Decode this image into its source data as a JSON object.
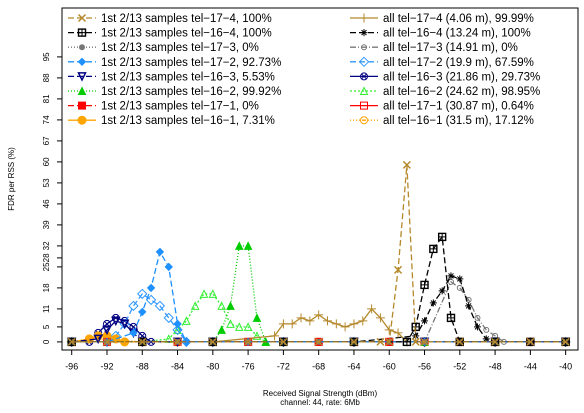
{
  "chart_data": {
    "type": "line",
    "xlabel": "Received Signal Strength (dBm)",
    "subtitle": "channel: 44, rate: 6Mb",
    "ylabel": "FDR per RSS (%)",
    "xlim": [
      -97.1,
      -38.6
    ],
    "ylim": [
      -2.7,
      111.3
    ],
    "xticks": [
      -96,
      -92,
      -88,
      -84,
      -80,
      -76,
      -72,
      -68,
      -64,
      -60,
      -56,
      -52,
      -48,
      -44,
      -40
    ],
    "yticks": [
      0,
      5,
      11,
      18,
      25,
      28,
      32,
      39,
      46,
      53,
      60,
      67,
      74,
      81,
      88,
      95
    ],
    "grid": false,
    "series": [
      {
        "name": "1st 2/13 samples tel−17−4, 100%",
        "color": "#b5892b",
        "marker": "x",
        "dash": "6,3",
        "x": [
          -96,
          -92,
          -88,
          -84,
          -80,
          -76,
          -72,
          -68,
          -64,
          -61,
          -60,
          -59,
          -58,
          -57,
          -56,
          -52,
          -48,
          -44,
          -40
        ],
        "values": [
          0,
          0,
          0,
          0,
          0,
          0,
          0,
          0,
          0,
          0,
          0,
          24,
          59,
          0,
          0,
          0,
          0,
          0,
          0
        ]
      },
      {
        "name": "1st 2/13 samples tel−16−4, 100%",
        "color": "#000000",
        "marker": "square-plus",
        "dash": "6,3",
        "x": [
          -96,
          -88,
          -80,
          -72,
          -64,
          -58,
          -57,
          -56,
          -55,
          -54,
          -53,
          -52,
          -48,
          -44,
          -40
        ],
        "values": [
          0,
          0,
          0,
          0,
          0,
          0,
          5,
          19,
          31,
          35,
          8,
          0,
          0,
          0,
          0
        ]
      },
      {
        "name": "1st 2/13 samples tel−17−3, 0%",
        "color": "#777777",
        "marker": "dot",
        "dash": "1,2",
        "x": [
          -96,
          -92,
          -88,
          -84,
          -80,
          -76,
          -72,
          -68,
          -64,
          -60,
          -56,
          -52,
          -48,
          -44,
          -40
        ],
        "values": [
          0,
          0,
          0,
          0,
          0,
          0,
          0,
          0,
          0,
          0,
          0,
          0,
          0,
          0,
          0
        ]
      },
      {
        "name": "1st 2/13 samples tel−17−2, 92.73%",
        "color": "#1e90ff",
        "marker": "diamond-filled",
        "dash": "6,3",
        "x": [
          -96,
          -92,
          -89,
          -88,
          -87,
          -86,
          -85,
          -84,
          -83,
          -80,
          -76,
          -72,
          -64,
          -56,
          -48,
          -40
        ],
        "values": [
          0,
          0,
          3,
          10,
          18,
          30,
          25,
          6,
          0,
          0,
          0,
          0,
          0,
          0,
          0,
          0
        ]
      },
      {
        "name": "1st 2/13 samples tel−16−3, 5.53%",
        "color": "#000080",
        "marker": "triangle-down",
        "dash": "6,3",
        "x": [
          -96,
          -93,
          -92,
          -91,
          -90,
          -89,
          -88,
          -84,
          -80,
          -72,
          -64,
          -56,
          -48,
          -40
        ],
        "values": [
          0,
          1,
          4,
          7,
          6,
          3,
          0,
          0,
          0,
          0,
          0,
          0,
          0,
          0
        ]
      },
      {
        "name": "1st 2/13 samples tel−16−2, 99.92%",
        "color": "#00cc00",
        "marker": "triangle-filled",
        "dash": "1,2",
        "x": [
          -96,
          -88,
          -80,
          -79,
          -78,
          -77,
          -76,
          -75,
          -74,
          -72,
          -64,
          -56,
          -48,
          -40
        ],
        "values": [
          0,
          0,
          0,
          4,
          12,
          32,
          32,
          8,
          0,
          0,
          0,
          0,
          0,
          0
        ]
      },
      {
        "name": "1st 2/13 samples tel−17−1, 0%",
        "color": "#ff0000",
        "marker": "square-filled",
        "dash": "6,3",
        "x": [
          -96,
          -92,
          -88,
          -84,
          -80,
          -76,
          -72,
          -68,
          -64,
          -60,
          -56,
          -52,
          -48,
          -44,
          -40
        ],
        "values": [
          0,
          0,
          0,
          0,
          0,
          0,
          0,
          0,
          0,
          0,
          0,
          0,
          0,
          0,
          0
        ]
      },
      {
        "name": "1st 2/13 samples tel−16−1, 7.31%",
        "color": "#ffa500",
        "marker": "circle-filled",
        "dash": "",
        "x": [
          -96,
          -94,
          -93,
          -92,
          -91,
          -90,
          -88,
          -84,
          -80,
          -72,
          -64,
          -56,
          -48,
          -40
        ],
        "values": [
          0,
          1,
          2,
          2,
          1,
          0,
          0,
          0,
          0,
          0,
          0,
          0,
          0,
          0
        ]
      },
      {
        "name": "all tel−17−4 (4.06 m), 99.99%",
        "color": "#b5892b",
        "marker": "plus",
        "dash": "",
        "x": [
          -96,
          -88,
          -80,
          -73,
          -72,
          -71,
          -70,
          -69,
          -68,
          -67,
          -66,
          -65,
          -64,
          -63,
          -62,
          -61,
          -60,
          -59,
          -58,
          -56,
          -52,
          -48,
          -44,
          -40
        ],
        "values": [
          0,
          0,
          0,
          2,
          6,
          6,
          8,
          7,
          9,
          7,
          6,
          5,
          6,
          7,
          11,
          8,
          4,
          3,
          0,
          0,
          0,
          0,
          0,
          0
        ]
      },
      {
        "name": "all tel−16−4 (13.24 m), 100%",
        "color": "#000000",
        "marker": "asterisk",
        "dash": "6,3",
        "x": [
          -96,
          -88,
          -80,
          -72,
          -64,
          -57,
          -56,
          -55,
          -54,
          -53,
          -52,
          -51,
          -50,
          -49,
          -48,
          -44,
          -40
        ],
        "values": [
          0,
          0,
          0,
          0,
          0,
          2,
          7,
          13,
          17,
          22,
          21,
          12,
          5,
          1,
          0,
          0,
          0
        ]
      },
      {
        "name": "all tel−17−3 (14.91 m), 0%",
        "color": "#777777",
        "marker": "circle",
        "dash": "6,2,1,2",
        "x": [
          -96,
          -88,
          -80,
          -72,
          -64,
          -56,
          -53,
          -52,
          -51,
          -50,
          -49,
          -48,
          -47,
          -44,
          -40
        ],
        "values": [
          0,
          0,
          0,
          0,
          0,
          0,
          20,
          18,
          14,
          8,
          4,
          2,
          0,
          0,
          0
        ]
      },
      {
        "name": "all tel−17−2 (19.9 m), 67.59%",
        "color": "#3399ff",
        "marker": "diamond",
        "dash": "6,3",
        "x": [
          -96,
          -92,
          -91,
          -90,
          -89,
          -88,
          -87,
          -86,
          -85,
          -84,
          -83,
          -80,
          -72,
          -64,
          -56,
          -48,
          -40
        ],
        "values": [
          0,
          0,
          2,
          6,
          12,
          16,
          14,
          12,
          8,
          4,
          0,
          0,
          0,
          0,
          0,
          0,
          0
        ]
      },
      {
        "name": "all tel−16−3 (21.86 m), 29.73%",
        "color": "#000080",
        "marker": "circle-x",
        "dash": "",
        "x": [
          -96,
          -94,
          -93,
          -92,
          -91,
          -90,
          -89,
          -88,
          -87,
          -84,
          -80,
          -72,
          -64,
          -56,
          -48,
          -40
        ],
        "values": [
          0,
          0,
          3,
          6,
          8,
          7,
          5,
          2,
          0,
          0,
          0,
          0,
          0,
          0,
          0,
          0
        ]
      },
      {
        "name": "all tel−16−2 (24.62 m), 98.95%",
        "color": "#33ee33",
        "marker": "triangle",
        "dash": "2,2",
        "x": [
          -96,
          -88,
          -85,
          -84,
          -83,
          -82,
          -81,
          -80,
          -79,
          -78,
          -77,
          -76,
          -75,
          -74,
          -72,
          -64,
          -56,
          -48,
          -40
        ],
        "values": [
          0,
          0,
          1,
          4,
          7,
          12,
          16,
          16,
          12,
          6,
          5,
          5,
          2,
          0,
          0,
          0,
          0,
          0,
          0
        ]
      },
      {
        "name": "all tel−17−1 (30.87 m), 0.64%",
        "color": "#ff0000",
        "marker": "square",
        "dash": "",
        "x": [
          -96,
          -92,
          -88,
          -84,
          -80,
          -76,
          -72,
          -68,
          -64,
          -60,
          -56,
          -52,
          -48,
          -44,
          -40
        ],
        "values": [
          0,
          0,
          0,
          0,
          0,
          0,
          0,
          0,
          0,
          0,
          0,
          0,
          0,
          0,
          0
        ]
      },
      {
        "name": "all tel−16−1 (31.5 m), 17.12%",
        "color": "#ffa500",
        "marker": "circle-dot",
        "dash": "1,2",
        "x": [
          -96,
          -92,
          -88,
          -84,
          -80,
          -76,
          -72,
          -68,
          -64,
          -60,
          -56,
          -52,
          -48,
          -44,
          -40
        ],
        "values": [
          0,
          1,
          0,
          0,
          0,
          0,
          0,
          0,
          0,
          0,
          0,
          0,
          0,
          0,
          0
        ]
      }
    ]
  }
}
